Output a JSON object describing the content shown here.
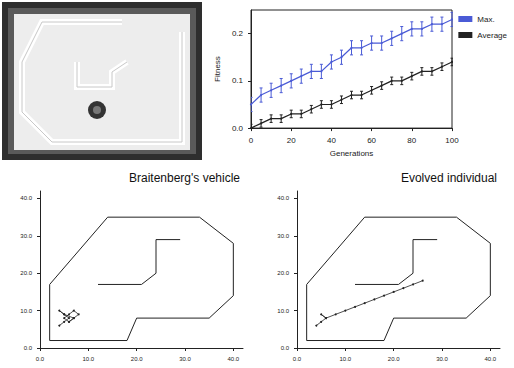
{
  "chart_data": [
    {
      "type": "line",
      "x_label": "Generations",
      "y_label": "Fitness",
      "x": [
        0,
        5,
        10,
        15,
        20,
        25,
        30,
        35,
        40,
        45,
        50,
        55,
        60,
        65,
        70,
        75,
        80,
        85,
        90,
        95,
        100
      ],
      "series": [
        {
          "name": "Max.",
          "color": "#4a5bd6",
          "values": [
            0.05,
            0.07,
            0.08,
            0.09,
            0.1,
            0.11,
            0.12,
            0.12,
            0.14,
            0.15,
            0.17,
            0.17,
            0.18,
            0.18,
            0.19,
            0.2,
            0.21,
            0.21,
            0.22,
            0.22,
            0.23
          ],
          "errors": [
            0.015,
            0.015,
            0.015,
            0.015,
            0.015,
            0.015,
            0.015,
            0.015,
            0.015,
            0.015,
            0.015,
            0.015,
            0.015,
            0.015,
            0.015,
            0.015,
            0.015,
            0.015,
            0.015,
            0.015,
            0.015
          ]
        },
        {
          "name": "Average",
          "color": "#222222",
          "values": [
            0.0,
            0.01,
            0.02,
            0.02,
            0.03,
            0.03,
            0.04,
            0.05,
            0.05,
            0.06,
            0.07,
            0.07,
            0.08,
            0.09,
            0.1,
            0.1,
            0.11,
            0.12,
            0.12,
            0.13,
            0.14
          ],
          "errors": [
            0.008,
            0.008,
            0.008,
            0.008,
            0.008,
            0.008,
            0.008,
            0.008,
            0.008,
            0.008,
            0.008,
            0.008,
            0.008,
            0.008,
            0.008,
            0.008,
            0.008,
            0.008,
            0.008,
            0.008,
            0.008
          ]
        }
      ],
      "xlim": [
        0,
        100
      ],
      "xticks": [
        0,
        20,
        40,
        60,
        80,
        100
      ],
      "ylim": [
        0,
        0.25
      ],
      "yticks": [
        {
          "value": 0,
          "label": "0.0"
        },
        0.1,
        0.2
      ],
      "legend": "right",
      "grid": false
    },
    {
      "type": "line",
      "title": "Braitenberg's vehicle",
      "series": [
        {
          "color": "#222222",
          "x": [
            2,
            2,
            14,
            33,
            40,
            40,
            35,
            20,
            18,
            2
          ],
          "values": [
            2,
            17,
            35,
            35,
            28,
            14,
            8,
            8,
            2,
            2
          ]
        },
        {
          "color": "#222222",
          "x": [
            12,
            21,
            24,
            24,
            29
          ],
          "values": [
            17,
            17,
            20,
            29,
            29
          ]
        },
        {
          "color": "#222222",
          "x": [
            4,
            5,
            6,
            5,
            4,
            5,
            7,
            6,
            5,
            6,
            7,
            8,
            7,
            6
          ],
          "values": [
            6,
            7,
            8,
            9,
            10,
            9,
            8,
            7,
            8,
            9,
            10,
            9,
            8,
            7
          ]
        }
      ],
      "xlim": [
        0,
        42
      ],
      "xticks": [
        {
          "value": 0,
          "label": "0.0"
        },
        {
          "value": 10,
          "label": "10.0"
        },
        {
          "value": 20,
          "label": "20.0"
        },
        {
          "value": 30,
          "label": "30.0"
        },
        {
          "value": 40,
          "label": "40.0"
        }
      ],
      "ylim": [
        0,
        42
      ],
      "yticks": [
        {
          "value": 0,
          "label": "0.0"
        },
        {
          "value": 10,
          "label": "10.0"
        },
        {
          "value": 20,
          "label": "20.0"
        },
        {
          "value": 30,
          "label": "30.0"
        },
        {
          "value": 40,
          "label": "40.0"
        }
      ],
      "grid": false
    },
    {
      "type": "line",
      "title": "Evolved individual",
      "series": [
        {
          "color": "#222222",
          "x": [
            2,
            2,
            14,
            33,
            40,
            40,
            35,
            20,
            18,
            2
          ],
          "values": [
            2,
            17,
            35,
            35,
            28,
            14,
            8,
            8,
            2,
            2
          ]
        },
        {
          "color": "#222222",
          "x": [
            12,
            21,
            24,
            24,
            29
          ],
          "values": [
            17,
            17,
            20,
            29,
            29
          ]
        },
        {
          "color": "#222222",
          "x": [
            4,
            5,
            6,
            5,
            6,
            8,
            10,
            12,
            14,
            16,
            18,
            20,
            22,
            24,
            26
          ],
          "values": [
            6,
            7,
            8,
            9,
            8,
            9,
            10,
            11,
            12,
            13,
            14,
            15,
            16,
            17,
            18
          ]
        }
      ],
      "xlim": [
        0,
        42
      ],
      "xticks": [
        {
          "value": 0,
          "label": "0.0"
        },
        {
          "value": 10,
          "label": "10.0"
        },
        {
          "value": 20,
          "label": "20.0"
        },
        {
          "value": 30,
          "label": "30.0"
        },
        {
          "value": 40,
          "label": "40.0"
        }
      ],
      "ylim": [
        0,
        42
      ],
      "yticks": [
        {
          "value": 0,
          "label": "0.0"
        },
        {
          "value": 10,
          "label": "10.0"
        },
        {
          "value": 20,
          "label": "20.0"
        },
        {
          "value": 30,
          "label": "30.0"
        },
        {
          "value": 40,
          "label": "40.0"
        }
      ],
      "grid": false
    }
  ]
}
